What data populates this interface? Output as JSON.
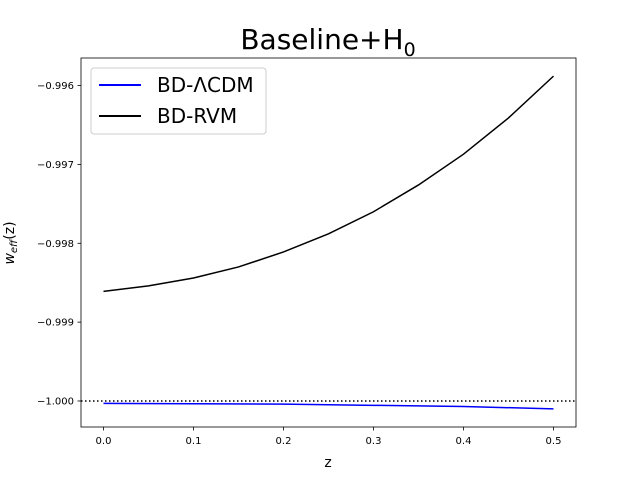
{
  "chart_data": {
    "type": "line",
    "title": "Baseline+H",
    "title_subscript": "0",
    "xlabel": "z",
    "ylabel": "w",
    "ylabel_subscript": "eff",
    "ylabel_suffix": "(z)",
    "xlim": [
      -0.025,
      0.525
    ],
    "ylim": [
      -1.00033,
      -0.99565
    ],
    "xticks": [
      0.0,
      0.1,
      0.2,
      0.3,
      0.4,
      0.5
    ],
    "xtick_labels": [
      "0.0",
      "0.1",
      "0.2",
      "0.3",
      "0.4",
      "0.5"
    ],
    "yticks": [
      -1.0,
      -0.999,
      -0.998,
      -0.997,
      -0.996
    ],
    "ytick_labels": [
      "−1.000",
      "−0.999",
      "−0.998",
      "−0.997",
      "−0.996"
    ],
    "reference_line": {
      "y": -1.0,
      "style": "dotted",
      "color": "#000000"
    },
    "legend_position": "top-left",
    "series": [
      {
        "name": "BD-ΛCDM",
        "color": "#0000ff",
        "x": [
          0.0,
          0.1,
          0.2,
          0.3,
          0.4,
          0.5
        ],
        "y": [
          -1.00003,
          -1.000035,
          -1.00004,
          -1.000055,
          -1.00007,
          -1.0001
        ]
      },
      {
        "name": "BD-RVM",
        "color": "#000000",
        "x": [
          0.0,
          0.05,
          0.1,
          0.15,
          0.2,
          0.25,
          0.3,
          0.35,
          0.4,
          0.45,
          0.5
        ],
        "y": [
          -0.99861,
          -0.99854,
          -0.99844,
          -0.9983,
          -0.99811,
          -0.99788,
          -0.9976,
          -0.99726,
          -0.99687,
          -0.99641,
          -0.99588
        ]
      }
    ]
  }
}
